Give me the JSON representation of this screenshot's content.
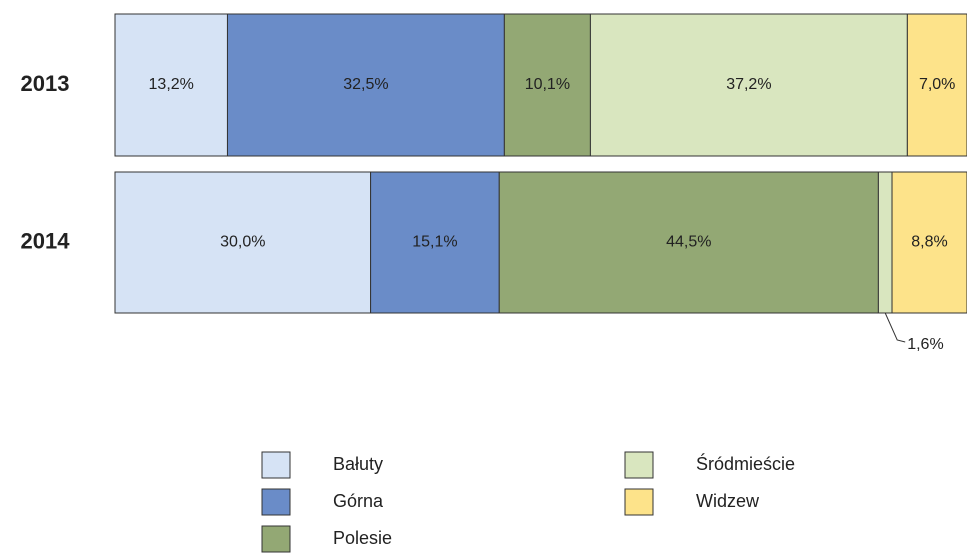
{
  "chart_data": {
    "type": "stacked-bar-horizontal",
    "categories": [
      "2013",
      "2014"
    ],
    "xlim": [
      0,
      100
    ],
    "series": [
      {
        "name": "Bałuty",
        "color": "#d6e3f5",
        "values": [
          13.2,
          30.0
        ],
        "value_labels": [
          "13,2%",
          "30,0%"
        ]
      },
      {
        "name": "Górna",
        "color": "#6a8cc8",
        "values": [
          32.5,
          15.1
        ],
        "value_labels": [
          "32,5%",
          "15,1%"
        ]
      },
      {
        "name": "Polesie",
        "color": "#93a874",
        "values": [
          10.1,
          44.5
        ],
        "value_labels": [
          "10,1%",
          "44,5%"
        ]
      },
      {
        "name": "Śródmieście",
        "color": "#d9e6bf",
        "values": [
          37.2,
          1.6
        ],
        "value_labels": [
          "37,2%",
          "1,6%"
        ]
      },
      {
        "name": "Widzew",
        "color": "#fde38a",
        "values": [
          7.0,
          8.8
        ],
        "value_labels": [
          "7,0%",
          "8,8%"
        ]
      }
    ]
  }
}
